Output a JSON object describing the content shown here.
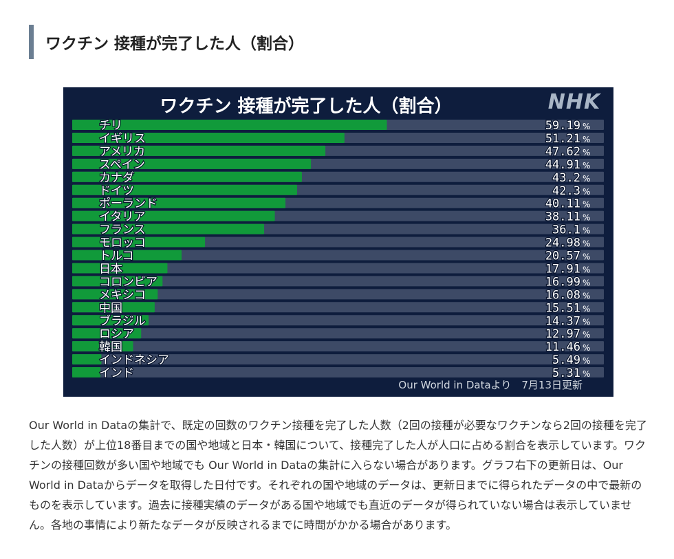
{
  "heading": "ワクチン 接種が完了した人（割合）",
  "chart_data": {
    "type": "bar",
    "orientation": "horizontal",
    "title": "ワクチン 接種が完了した人（割合）",
    "logo": "NHK",
    "unit": "%",
    "xlim": [
      0,
      100
    ],
    "categories": [
      "チリ",
      "イギリス",
      "アメリカ",
      "スペイン",
      "カナダ",
      "ドイツ",
      "ポーランド",
      "イタリア",
      "フランス",
      "モロッコ",
      "トルコ",
      "日本",
      "コロンビア",
      "メキシコ",
      "中国",
      "ブラジル",
      "ロシア",
      "韓国",
      "インドネシア",
      "インド"
    ],
    "values": [
      59.19,
      51.21,
      47.62,
      44.91,
      43.2,
      42.3,
      40.11,
      38.11,
      36.1,
      24.98,
      20.57,
      17.91,
      16.99,
      16.08,
      15.51,
      14.37,
      12.97,
      11.46,
      5.49,
      5.31
    ],
    "value_labels": [
      "59.19",
      "51.21",
      "47.62",
      "44.91",
      "43.2",
      "42.3",
      "40.11",
      "38.11",
      "36.1",
      "24.98",
      "20.57",
      "17.91",
      "16.99",
      "16.08",
      "15.51",
      "14.37",
      "12.97",
      "11.46",
      "5.49",
      "5.31"
    ],
    "bar_color": "#119a3a",
    "track_color": "#3d4a66",
    "background_color": "#0e1d3d",
    "source_note": "Our World in Dataより　7月13日更新"
  },
  "description": "Our World in Dataの集計で、既定の回数のワクチン接種を完了した人数（2回の接種が必要なワクチンなら2回の接種を完了した人数）が上位18番目までの国や地域と日本・韓国について、接種完了した人が人口に占める割合を表示しています。ワクチンの接種回数が多い国や地域でも Our World in Dataの集計に入らない場合があります。グラフ右下の更新日は、Our World in Dataからデータを取得した日付です。それぞれの国や地域のデータは、更新日までに得られたデータの中で最新のものを表示しています。過去に接種実績のデータがある国や地域でも直近のデータが得られていない場合は表示していません。各地の事情により新たなデータが反映されるまでに時間がかかる場合があります。"
}
